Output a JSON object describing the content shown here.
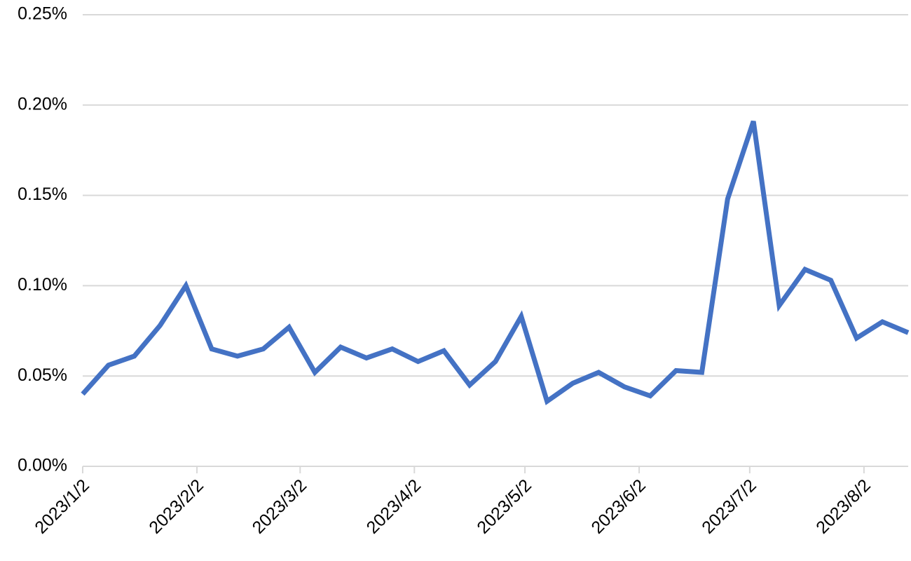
{
  "chart_data": {
    "type": "line",
    "x": [
      "2023/1/2",
      "2023/1/9",
      "2023/1/16",
      "2023/1/23",
      "2023/1/30",
      "2023/2/6",
      "2023/2/13",
      "2023/2/20",
      "2023/2/27",
      "2023/3/6",
      "2023/3/13",
      "2023/3/20",
      "2023/3/27",
      "2023/4/3",
      "2023/4/10",
      "2023/4/17",
      "2023/4/24",
      "2023/5/1",
      "2023/5/8",
      "2023/5/15",
      "2023/5/22",
      "2023/5/29",
      "2023/6/5",
      "2023/6/12",
      "2023/6/19",
      "2023/6/26",
      "2023/7/3",
      "2023/7/10",
      "2023/7/17",
      "2023/7/24",
      "2023/7/31",
      "2023/8/7",
      "2023/8/14"
    ],
    "series": [
      {
        "color": "#4472c4",
        "values": [
          0.04,
          0.056,
          0.061,
          0.078,
          0.1,
          0.065,
          0.061,
          0.065,
          0.077,
          0.052,
          0.066,
          0.06,
          0.065,
          0.058,
          0.064,
          0.045,
          0.058,
          0.083,
          0.036,
          0.046,
          0.052,
          0.044,
          0.039,
          0.053,
          0.052,
          0.148,
          0.191,
          0.089,
          0.109,
          0.103,
          0.071,
          0.08,
          0.074
        ]
      }
    ],
    "xlim": [
      "2023/1/2",
      "2023/8/14"
    ],
    "xticks": [
      "2023/1/2",
      "2023/2/2",
      "2023/3/2",
      "2023/4/2",
      "2023/5/2",
      "2023/6/2",
      "2023/7/2",
      "2023/8/2"
    ],
    "ylim": [
      0,
      0.25
    ],
    "yticks": [
      {
        "value": 0,
        "label": "0.00%"
      },
      {
        "value": 0.05,
        "label": "0.05%"
      },
      {
        "value": 0.1,
        "label": "0.10%"
      },
      {
        "value": 0.15,
        "label": "0.15%"
      },
      {
        "value": 0.2,
        "label": "0.20%"
      },
      {
        "value": 0.25,
        "label": "0.25%"
      }
    ],
    "grid": true
  }
}
